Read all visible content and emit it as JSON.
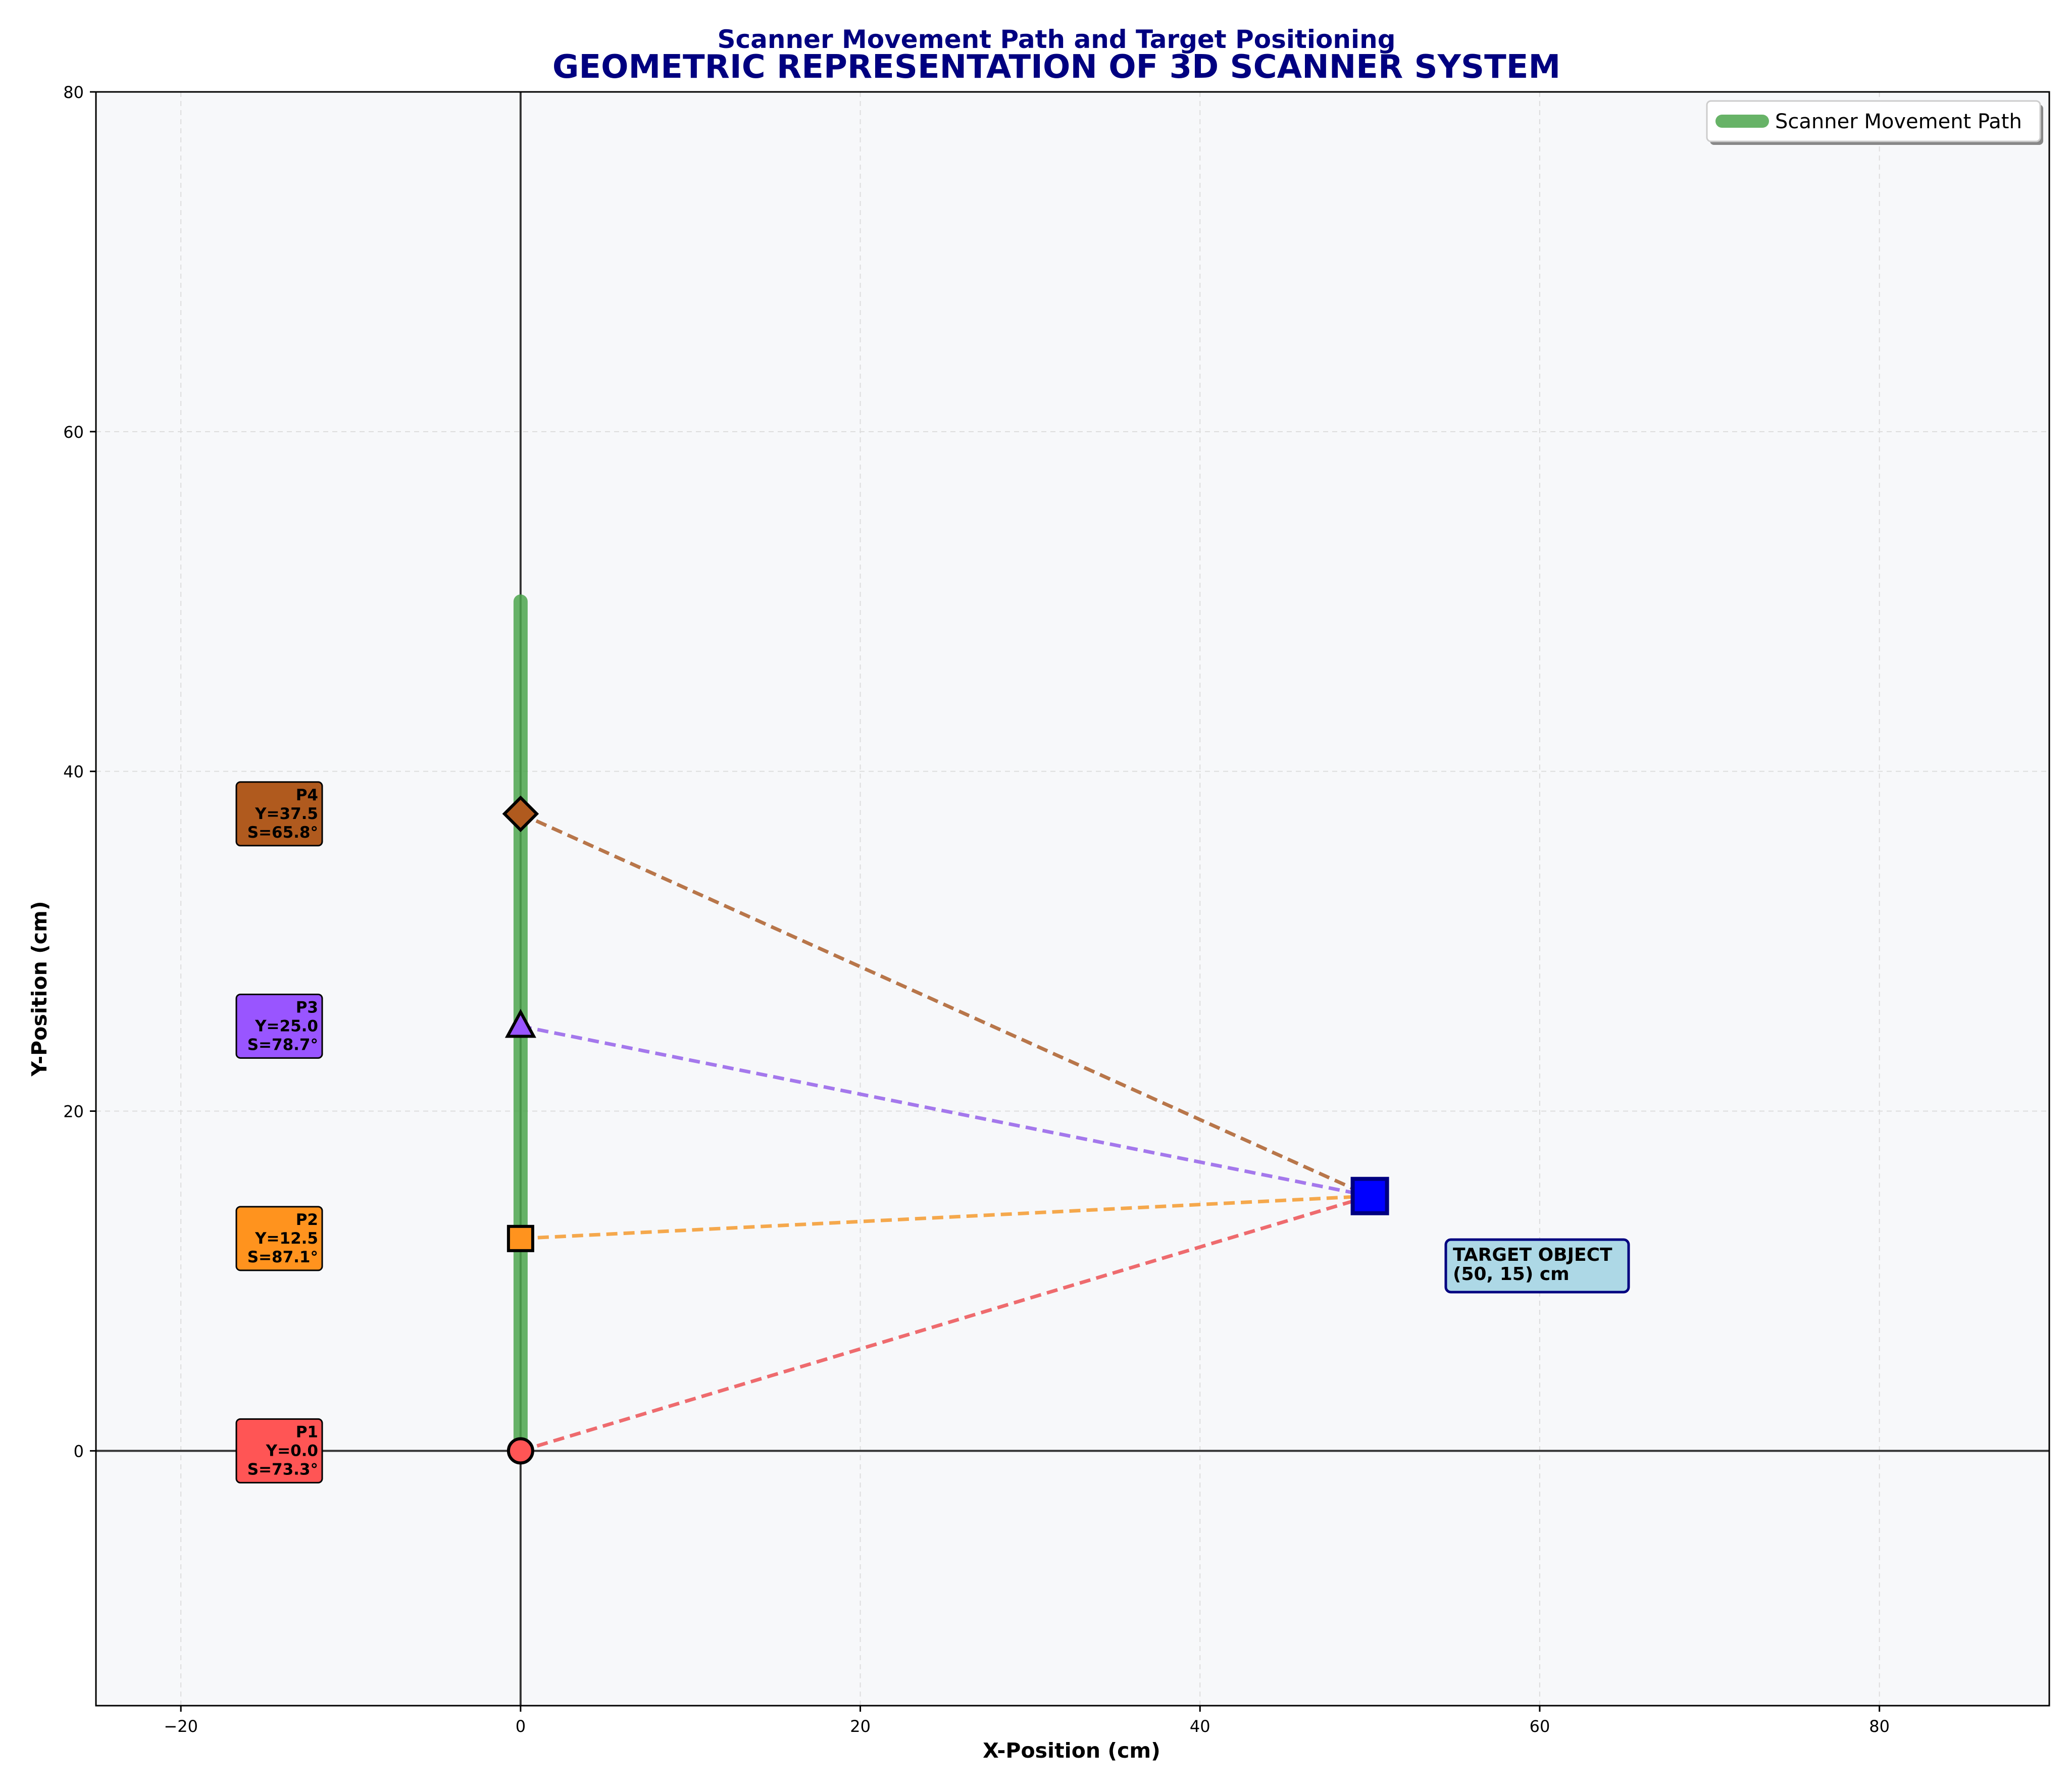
{
  "chart_data": {
    "type": "scatter",
    "title": "GEOMETRIC REPRESENTATION OF 3D SCANNER SYSTEM",
    "subtitle": "Scanner Movement Path and Target Positioning",
    "xlabel": "X-Position (cm)",
    "ylabel": "Y-Position (cm)",
    "xlim": [
      -25,
      90
    ],
    "ylim": [
      -15,
      80
    ],
    "x_ticks": [
      -20,
      0,
      20,
      40,
      60,
      80
    ],
    "y_ticks": [
      0,
      20,
      40,
      60,
      80
    ],
    "grid": true,
    "legend_position": "top-right",
    "scanner_path": {
      "name": "Scanner Movement Path",
      "color": "#4CA64C",
      "x": [
        0,
        0
      ],
      "y": [
        0,
        50
      ]
    },
    "target": {
      "x": 50,
      "y": 15,
      "color": "#0000FF",
      "label_lines": [
        "TARGET OBJECT",
        "(50, 15) cm"
      ],
      "label_color": "#ADD8E6"
    },
    "scanner_points": [
      {
        "id": "P1",
        "x": 0,
        "y": 0.0,
        "label_lines": [
          "P1",
          "Y=0.0",
          "S=73.3°"
        ],
        "color": "#FF5555",
        "line_color": "#EE6B6E",
        "marker": "circle"
      },
      {
        "id": "P2",
        "x": 0,
        "y": 12.5,
        "label_lines": [
          "P2",
          "Y=12.5",
          "S=87.1°"
        ],
        "color": "#FF931E",
        "line_color": "#F5A84C",
        "marker": "square"
      },
      {
        "id": "P3",
        "x": 0,
        "y": 25.0,
        "label_lines": [
          "P3",
          "Y=25.0",
          "S=78.7°"
        ],
        "color": "#9955FF",
        "line_color": "#A478EC",
        "marker": "triangle"
      },
      {
        "id": "P4",
        "x": 0,
        "y": 37.5,
        "label_lines": [
          "P4",
          "Y=37.5",
          "S=65.8°"
        ],
        "color": "#B05A1E",
        "line_color": "#B8764A",
        "marker": "diamond"
      }
    ]
  }
}
